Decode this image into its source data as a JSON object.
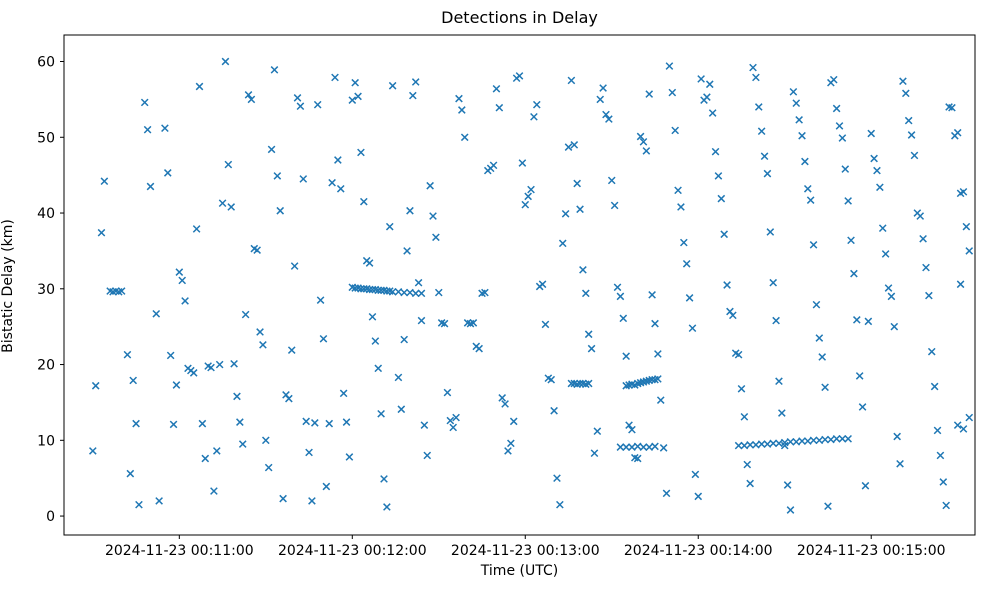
{
  "figure": {
    "title": "Detections in Delay",
    "xlabel": "Time (UTC)",
    "ylabel": "Bistatic Delay (km)"
  },
  "chart_data": {
    "type": "scatter",
    "title": "Detections in Delay",
    "xlabel": "Time (UTC)",
    "ylabel": "Bistatic Delay (km)",
    "marker": "x",
    "marker_color": "#1f77b4",
    "grid": false,
    "legend": "none",
    "x_unit": "seconds after 2024-11-23 00:10:00 UTC",
    "xlim": [
      20,
      336
    ],
    "ylim": [
      -2.5,
      63.5
    ],
    "x_ticks": [
      {
        "t": 60,
        "label": "2024-11-23 00:11:00"
      },
      {
        "t": 120,
        "label": "2024-11-23 00:12:00"
      },
      {
        "t": 180,
        "label": "2024-11-23 00:13:00"
      },
      {
        "t": 240,
        "label": "2024-11-23 00:14:00"
      },
      {
        "t": 300,
        "label": "2024-11-23 00:15:00"
      }
    ],
    "y_ticks": [
      0,
      10,
      20,
      30,
      40,
      50,
      60
    ],
    "points": [
      [
        30,
        8.6
      ],
      [
        31,
        17.2
      ],
      [
        33,
        37.4
      ],
      [
        34,
        44.2
      ],
      [
        36,
        29.7
      ],
      [
        37,
        29.6
      ],
      [
        38,
        29.7
      ],
      [
        39,
        29.6
      ],
      [
        40,
        29.7
      ],
      [
        42,
        21.3
      ],
      [
        43,
        5.6
      ],
      [
        44,
        17.9
      ],
      [
        45,
        12.2
      ],
      [
        46,
        1.5
      ],
      [
        48,
        54.6
      ],
      [
        49,
        51.0
      ],
      [
        50,
        43.5
      ],
      [
        52,
        26.7
      ],
      [
        53,
        2.0
      ],
      [
        55,
        51.2
      ],
      [
        56,
        45.3
      ],
      [
        57,
        21.2
      ],
      [
        58,
        12.1
      ],
      [
        59,
        17.3
      ],
      [
        60,
        32.2
      ],
      [
        61,
        31.1
      ],
      [
        62,
        28.4
      ],
      [
        63,
        19.5
      ],
      [
        64,
        19.2
      ],
      [
        65,
        18.9
      ],
      [
        66,
        37.9
      ],
      [
        67,
        56.7
      ],
      [
        68,
        12.2
      ],
      [
        69,
        7.6
      ],
      [
        70,
        19.8
      ],
      [
        71,
        19.6
      ],
      [
        72,
        3.3
      ],
      [
        73,
        8.6
      ],
      [
        74,
        20.0
      ],
      [
        75,
        41.3
      ],
      [
        76,
        60.0
      ],
      [
        77,
        46.4
      ],
      [
        78,
        40.8
      ],
      [
        79,
        20.1
      ],
      [
        80,
        15.8
      ],
      [
        81,
        12.4
      ],
      [
        82,
        9.5
      ],
      [
        83,
        26.6
      ],
      [
        84,
        55.6
      ],
      [
        85,
        55.0
      ],
      [
        86,
        35.3
      ],
      [
        87,
        35.1
      ],
      [
        88,
        24.3
      ],
      [
        89,
        22.6
      ],
      [
        90,
        10.0
      ],
      [
        91,
        6.4
      ],
      [
        92,
        48.4
      ],
      [
        93,
        58.9
      ],
      [
        94,
        44.9
      ],
      [
        95,
        40.3
      ],
      [
        96,
        2.3
      ],
      [
        97,
        16.0
      ],
      [
        98,
        15.5
      ],
      [
        99,
        21.9
      ],
      [
        100,
        33.0
      ],
      [
        101,
        55.2
      ],
      [
        102,
        54.1
      ],
      [
        103,
        44.5
      ],
      [
        104,
        12.5
      ],
      [
        105,
        8.4
      ],
      [
        106,
        2.0
      ],
      [
        107,
        12.3
      ],
      [
        108,
        54.3
      ],
      [
        109,
        28.5
      ],
      [
        110,
        23.4
      ],
      [
        111,
        3.9
      ],
      [
        112,
        12.2
      ],
      [
        113,
        44.0
      ],
      [
        114,
        57.9
      ],
      [
        115,
        47.0
      ],
      [
        116,
        43.2
      ],
      [
        117,
        16.2
      ],
      [
        118,
        12.4
      ],
      [
        119,
        7.8
      ],
      [
        120,
        54.9
      ],
      [
        120,
        30.2
      ],
      [
        121,
        30.1
      ],
      [
        122,
        30.1
      ],
      [
        123,
        30.0
      ],
      [
        124,
        30.0
      ],
      [
        125,
        30.0
      ],
      [
        126,
        29.9
      ],
      [
        127,
        29.9
      ],
      [
        128,
        29.9
      ],
      [
        129,
        29.8
      ],
      [
        130,
        29.8
      ],
      [
        131,
        29.8
      ],
      [
        132,
        29.7
      ],
      [
        133,
        29.7
      ],
      [
        134,
        29.6
      ],
      [
        136,
        29.6
      ],
      [
        138,
        29.5
      ],
      [
        140,
        29.5
      ],
      [
        142,
        29.4
      ],
      [
        144,
        29.4
      ],
      [
        121,
        57.2
      ],
      [
        122,
        55.4
      ],
      [
        123,
        48.0
      ],
      [
        124,
        41.5
      ],
      [
        125,
        33.7
      ],
      [
        126,
        33.4
      ],
      [
        127,
        26.3
      ],
      [
        128,
        23.1
      ],
      [
        129,
        19.5
      ],
      [
        130,
        13.5
      ],
      [
        131,
        4.9
      ],
      [
        132,
        1.2
      ],
      [
        133,
        38.2
      ],
      [
        134,
        56.8
      ],
      [
        136,
        18.3
      ],
      [
        137,
        14.1
      ],
      [
        138,
        23.3
      ],
      [
        139,
        35.0
      ],
      [
        140,
        40.3
      ],
      [
        141,
        55.5
      ],
      [
        142,
        57.3
      ],
      [
        143,
        30.8
      ],
      [
        144,
        25.8
      ],
      [
        145,
        12.0
      ],
      [
        146,
        8.0
      ],
      [
        147,
        43.6
      ],
      [
        148,
        39.6
      ],
      [
        149,
        36.8
      ],
      [
        150,
        29.5
      ],
      [
        151,
        25.5
      ],
      [
        152,
        25.4
      ],
      [
        153,
        16.3
      ],
      [
        154,
        12.6
      ],
      [
        155,
        11.7
      ],
      [
        156,
        13.0
      ],
      [
        157,
        55.1
      ],
      [
        158,
        53.6
      ],
      [
        159,
        50.0
      ],
      [
        160,
        25.5
      ],
      [
        161,
        25.4
      ],
      [
        162,
        25.5
      ],
      [
        163,
        22.4
      ],
      [
        164,
        22.1
      ],
      [
        165,
        29.4
      ],
      [
        166,
        29.5
      ],
      [
        167,
        45.6
      ],
      [
        168,
        45.9
      ],
      [
        169,
        46.3
      ],
      [
        170,
        56.4
      ],
      [
        171,
        53.9
      ],
      [
        172,
        15.6
      ],
      [
        173,
        14.8
      ],
      [
        174,
        8.6
      ],
      [
        175,
        9.6
      ],
      [
        176,
        12.5
      ],
      [
        177,
        57.8
      ],
      [
        178,
        58.1
      ],
      [
        179,
        46.6
      ],
      [
        180,
        41.1
      ],
      [
        181,
        42.2
      ],
      [
        182,
        43.1
      ],
      [
        183,
        52.7
      ],
      [
        184,
        54.3
      ],
      [
        185,
        30.3
      ],
      [
        186,
        30.6
      ],
      [
        187,
        25.3
      ],
      [
        188,
        18.2
      ],
      [
        189,
        18.0
      ],
      [
        190,
        13.9
      ],
      [
        191,
        5.0
      ],
      [
        192,
        1.5
      ],
      [
        193,
        36.0
      ],
      [
        194,
        39.9
      ],
      [
        195,
        48.7
      ],
      [
        196,
        57.5
      ],
      [
        197,
        49.0
      ],
      [
        198,
        43.9
      ],
      [
        199,
        40.5
      ],
      [
        200,
        32.5
      ],
      [
        201,
        29.4
      ],
      [
        202,
        24.0
      ],
      [
        203,
        22.1
      ],
      [
        204,
        8.3
      ],
      [
        205,
        11.2
      ],
      [
        206,
        55.0
      ],
      [
        207,
        56.5
      ],
      [
        208,
        53.0
      ],
      [
        209,
        52.4
      ],
      [
        210,
        44.3
      ],
      [
        211,
        41.0
      ],
      [
        212,
        30.2
      ],
      [
        213,
        29.0
      ],
      [
        214,
        26.1
      ],
      [
        215,
        21.1
      ],
      [
        216,
        12.0
      ],
      [
        217,
        11.4
      ],
      [
        218,
        7.7
      ],
      [
        219,
        7.6
      ],
      [
        220,
        50.1
      ],
      [
        221,
        49.4
      ],
      [
        222,
        48.2
      ],
      [
        223,
        55.7
      ],
      [
        224,
        29.2
      ],
      [
        225,
        25.4
      ],
      [
        226,
        21.4
      ],
      [
        227,
        15.3
      ],
      [
        228,
        9.0
      ],
      [
        229,
        3.0
      ],
      [
        230,
        59.4
      ],
      [
        231,
        55.9
      ],
      [
        232,
        50.9
      ],
      [
        233,
        43.0
      ],
      [
        234,
        40.8
      ],
      [
        235,
        36.1
      ],
      [
        236,
        33.3
      ],
      [
        237,
        28.8
      ],
      [
        238,
        24.8
      ],
      [
        239,
        5.5
      ],
      [
        240,
        2.6
      ],
      [
        196,
        17.5
      ],
      [
        197,
        17.5
      ],
      [
        198,
        17.4
      ],
      [
        199,
        17.5
      ],
      [
        200,
        17.5
      ],
      [
        201,
        17.4
      ],
      [
        202,
        17.5
      ],
      [
        215,
        17.2
      ],
      [
        216,
        17.3
      ],
      [
        217,
        17.4
      ],
      [
        218,
        17.3
      ],
      [
        219,
        17.5
      ],
      [
        220,
        17.6
      ],
      [
        221,
        17.7
      ],
      [
        222,
        17.8
      ],
      [
        223,
        17.9
      ],
      [
        224,
        18.0
      ],
      [
        225,
        18.0
      ],
      [
        226,
        18.1
      ],
      [
        213,
        9.1
      ],
      [
        215,
        9.1
      ],
      [
        217,
        9.1
      ],
      [
        219,
        9.2
      ],
      [
        221,
        9.1
      ],
      [
        223,
        9.1
      ],
      [
        225,
        9.2
      ],
      [
        241,
        57.7
      ],
      [
        242,
        54.9
      ],
      [
        243,
        55.3
      ],
      [
        244,
        57.0
      ],
      [
        245,
        53.2
      ],
      [
        246,
        48.1
      ],
      [
        247,
        44.9
      ],
      [
        248,
        41.9
      ],
      [
        249,
        37.2
      ],
      [
        250,
        30.5
      ],
      [
        251,
        27.0
      ],
      [
        252,
        26.5
      ],
      [
        253,
        21.5
      ],
      [
        254,
        21.3
      ],
      [
        255,
        16.8
      ],
      [
        256,
        13.1
      ],
      [
        257,
        6.8
      ],
      [
        258,
        4.3
      ],
      [
        259,
        59.2
      ],
      [
        260,
        57.9
      ],
      [
        261,
        54.0
      ],
      [
        262,
        50.8
      ],
      [
        263,
        47.5
      ],
      [
        264,
        45.2
      ],
      [
        265,
        37.5
      ],
      [
        266,
        30.8
      ],
      [
        267,
        25.8
      ],
      [
        268,
        17.8
      ],
      [
        269,
        13.6
      ],
      [
        270,
        9.3
      ],
      [
        271,
        4.1
      ],
      [
        272,
        0.8
      ],
      [
        273,
        56.0
      ],
      [
        274,
        54.5
      ],
      [
        275,
        52.3
      ],
      [
        276,
        50.2
      ],
      [
        277,
        46.8
      ],
      [
        278,
        43.2
      ],
      [
        279,
        41.7
      ],
      [
        280,
        35.8
      ],
      [
        281,
        27.9
      ],
      [
        282,
        23.5
      ],
      [
        283,
        21.0
      ],
      [
        284,
        17.0
      ],
      [
        285,
        1.3
      ],
      [
        286,
        57.2
      ],
      [
        287,
        57.6
      ],
      [
        288,
        53.8
      ],
      [
        289,
        51.5
      ],
      [
        290,
        49.9
      ],
      [
        291,
        45.8
      ],
      [
        292,
        41.6
      ],
      [
        293,
        36.4
      ],
      [
        294,
        32.0
      ],
      [
        295,
        25.9
      ],
      [
        296,
        18.5
      ],
      [
        297,
        14.4
      ],
      [
        298,
        4.0
      ],
      [
        299,
        25.7
      ],
      [
        300,
        50.5
      ],
      [
        254,
        9.3
      ],
      [
        256,
        9.3
      ],
      [
        258,
        9.4
      ],
      [
        260,
        9.4
      ],
      [
        262,
        9.5
      ],
      [
        264,
        9.5
      ],
      [
        266,
        9.6
      ],
      [
        268,
        9.6
      ],
      [
        270,
        9.7
      ],
      [
        272,
        9.8
      ],
      [
        274,
        9.8
      ],
      [
        276,
        9.9
      ],
      [
        278,
        9.9
      ],
      [
        280,
        10.0
      ],
      [
        282,
        10.0
      ],
      [
        284,
        10.1
      ],
      [
        286,
        10.1
      ],
      [
        288,
        10.2
      ],
      [
        290,
        10.2
      ],
      [
        292,
        10.2
      ],
      [
        301,
        47.2
      ],
      [
        302,
        45.6
      ],
      [
        303,
        43.4
      ],
      [
        304,
        38.0
      ],
      [
        305,
        34.6
      ],
      [
        306,
        30.1
      ],
      [
        307,
        29.0
      ],
      [
        308,
        25.0
      ],
      [
        309,
        10.5
      ],
      [
        310,
        6.9
      ],
      [
        311,
        57.4
      ],
      [
        312,
        55.8
      ],
      [
        313,
        52.2
      ],
      [
        314,
        50.3
      ],
      [
        315,
        47.6
      ],
      [
        316,
        40.0
      ],
      [
        317,
        39.6
      ],
      [
        318,
        36.6
      ],
      [
        319,
        32.8
      ],
      [
        320,
        29.1
      ],
      [
        321,
        21.7
      ],
      [
        322,
        17.1
      ],
      [
        323,
        11.3
      ],
      [
        324,
        8.0
      ],
      [
        325,
        4.5
      ],
      [
        326,
        1.4
      ],
      [
        327,
        54.0
      ],
      [
        328,
        53.9
      ],
      [
        329,
        50.2
      ],
      [
        330,
        50.6
      ],
      [
        331,
        42.6
      ],
      [
        332,
        42.8
      ],
      [
        333,
        38.2
      ],
      [
        334,
        35.0
      ],
      [
        330,
        12.0
      ],
      [
        332,
        11.5
      ],
      [
        334,
        13.0
      ],
      [
        331,
        30.6
      ]
    ]
  }
}
